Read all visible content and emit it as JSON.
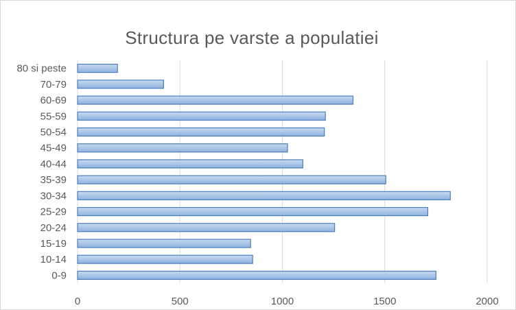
{
  "chart_data": {
    "type": "bar",
    "orientation": "horizontal",
    "title": "Structura  pe varste a populatiei",
    "xlabel": "",
    "ylabel": "",
    "categories": [
      "0-9",
      "10-14",
      "15-19",
      "20-24",
      "25-29",
      "30-34",
      "35-39",
      "40-44",
      "45-49",
      "50-54",
      "55-59",
      "60-69",
      "70-79",
      "80 si peste"
    ],
    "values": [
      1750,
      855,
      845,
      1255,
      1710,
      1820,
      1505,
      1100,
      1025,
      1205,
      1210,
      1345,
      420,
      195
    ],
    "xlim": [
      0,
      2000
    ],
    "xticks": [
      0,
      500,
      1000,
      1500,
      2000
    ],
    "grid": true,
    "legend": "none",
    "colors": {
      "bar_fill_top": "#c9daf0",
      "bar_fill_bottom": "#8eb1de",
      "bar_stroke": "#4a7ebb",
      "grid": "#d9d9d9",
      "text": "#595959"
    }
  }
}
